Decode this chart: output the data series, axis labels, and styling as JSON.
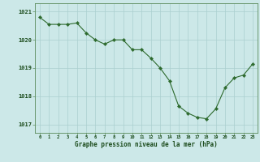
{
  "x": [
    0,
    1,
    2,
    3,
    4,
    5,
    6,
    7,
    8,
    9,
    10,
    11,
    12,
    13,
    14,
    15,
    16,
    17,
    18,
    19,
    20,
    21,
    22,
    23
  ],
  "y": [
    1020.8,
    1020.55,
    1020.55,
    1020.55,
    1020.6,
    1020.25,
    1020.0,
    1019.85,
    1020.0,
    1020.0,
    1019.65,
    1019.65,
    1019.35,
    1019.0,
    1018.55,
    1017.65,
    1017.4,
    1017.25,
    1017.2,
    1017.55,
    1018.3,
    1018.65,
    1018.75,
    1019.15
  ],
  "line_color": "#2d6a2d",
  "marker_color": "#2d6a2d",
  "bg_color": "#cce8e8",
  "grid_color": "#aacfcf",
  "xlabel": "Graphe pression niveau de la mer (hPa)",
  "xlabel_color": "#1a4a1a",
  "tick_color": "#1a4a1a",
  "ylim": [
    1016.7,
    1021.3
  ],
  "yticks": [
    1017,
    1018,
    1019,
    1020,
    1021
  ],
  "xticks": [
    0,
    1,
    2,
    3,
    4,
    5,
    6,
    7,
    8,
    9,
    10,
    11,
    12,
    13,
    14,
    15,
    16,
    17,
    18,
    19,
    20,
    21,
    22,
    23
  ],
  "spine_color": "#5a8a5a"
}
